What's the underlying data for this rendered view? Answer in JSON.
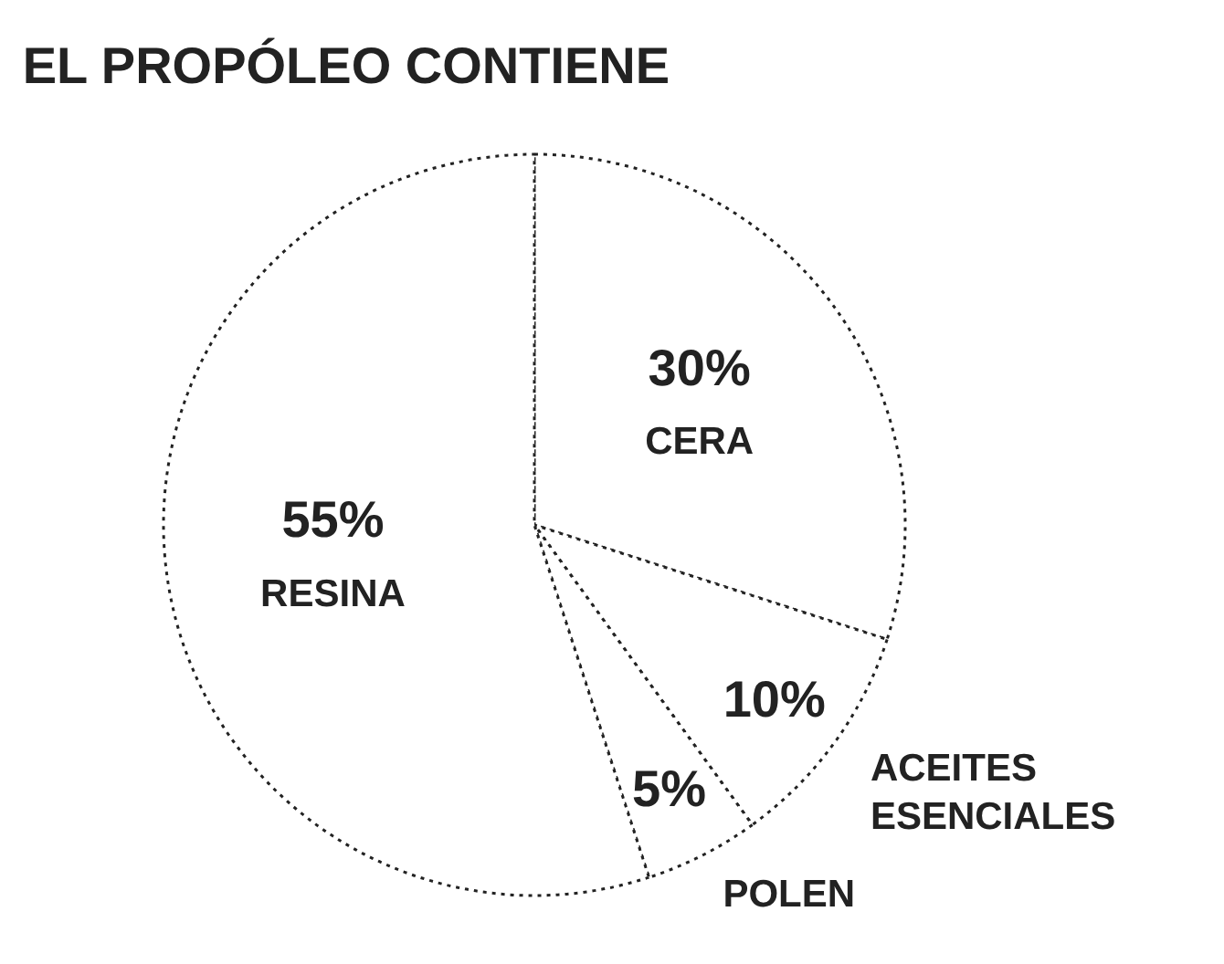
{
  "chart_data": {
    "type": "pie",
    "title": "EL PROPÓLEO CONTIENE",
    "categories": [
      "CERA",
      "ACEITES ESENCIALES",
      "POLEN",
      "RESINA"
    ],
    "values": [
      30,
      10,
      5,
      55
    ],
    "value_labels": [
      "30%",
      "10%",
      "5%",
      "55%"
    ],
    "colors": [
      "#ffffff",
      "#ffffff",
      "#ffffff",
      "#ffffff"
    ]
  }
}
